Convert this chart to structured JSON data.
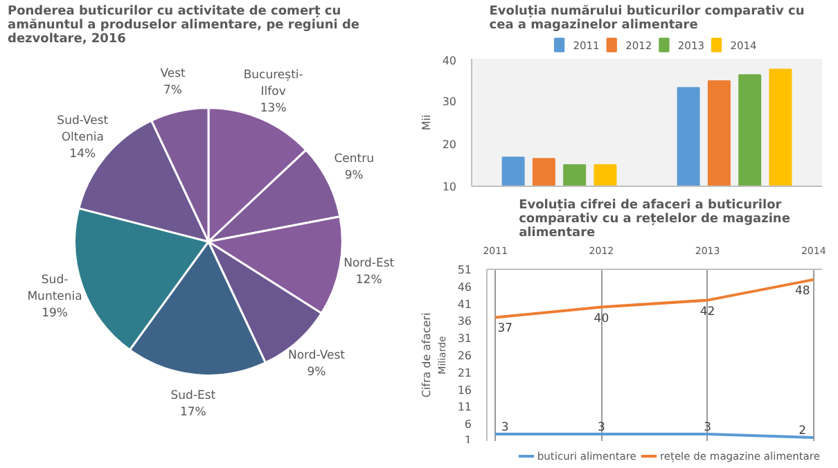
{
  "chart_data": [
    {
      "type": "pie",
      "title": "Ponderea buticurilor cu activitate de comerț cu amănuntul a produselor alimentare, pe regiuni de dezvoltare, 2016",
      "categories": [
        "București-Ilfov",
        "Centru",
        "Nord-Est",
        "Nord-Vest",
        "Sud-Est",
        "Sud-Muntenia",
        "Sud-Vest Oltenia",
        "Vest"
      ],
      "values": [
        13,
        9,
        12,
        9,
        17,
        19,
        14,
        7
      ],
      "value_labels": [
        "13%",
        "9%",
        "12%",
        "9%",
        "17%",
        "19%",
        "14%",
        "7%"
      ],
      "colors": [
        "#875c9c",
        "#7f5b98",
        "#875c9c",
        "#6a5790",
        "#3d6388",
        "#2f7d8c",
        "#6d5892",
        "#7f5b98"
      ]
    },
    {
      "type": "bar",
      "title": "Evoluția numărului buticurilor comparativ cu cea a magazinelor alimentare",
      "ylabel": "Mii",
      "categories": [
        null,
        null
      ],
      "series": [
        {
          "name": "2011",
          "color": "#5b9bd5",
          "values": [
            16.8,
            33.2
          ]
        },
        {
          "name": "2012",
          "color": "#ed7d31",
          "values": [
            16.5,
            34.8
          ]
        },
        {
          "name": "2013",
          "color": "#70ad47",
          "values": [
            15,
            36.2
          ]
        },
        {
          "name": "2014",
          "color": "#ffc000",
          "values": [
            15,
            37.5
          ]
        }
      ],
      "ylim": [
        10,
        40
      ],
      "yticks": [
        10,
        20,
        30,
        40
      ],
      "legend": "top",
      "grid": false
    },
    {
      "type": "line",
      "title": "Evoluția cifrei de afaceri a buticurilor comparativ cu a rețelelor de magazine alimentare",
      "ylabel": "Cifra de afaceri",
      "annotations": [
        "Miliarde"
      ],
      "categories": [
        "2011",
        "2012",
        "2013",
        "2014"
      ],
      "series": [
        {
          "name": "buticuri alimentare",
          "color": "#5b9bd5",
          "values": [
            3,
            3,
            3,
            2
          ]
        },
        {
          "name": "rețele de magazine alimentare",
          "color": "#ed7d31",
          "values": [
            37,
            40,
            42,
            48
          ]
        }
      ],
      "ylim": [
        1,
        51
      ],
      "yticks": [
        1,
        6,
        11,
        16,
        21,
        26,
        31,
        36,
        41,
        46,
        51
      ],
      "data_labels": true,
      "grid": "x",
      "legend": "bottom",
      "marker": "none",
      "line_style": "solid"
    }
  ]
}
